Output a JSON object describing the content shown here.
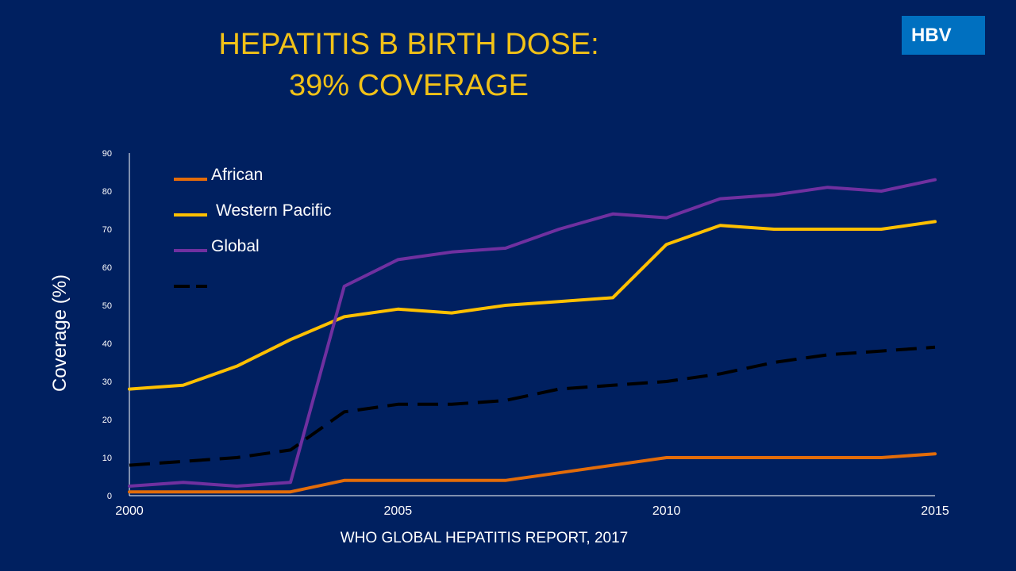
{
  "title_line1": "HEPATITIS B BIRTH DOSE:",
  "title_line2": "39% COVERAGE",
  "badge": "HBV",
  "source": "WHO GLOBAL  HEPATITIS  REPORT, 2017",
  "chart_data": {
    "type": "line",
    "ylabel": "Coverage (%)",
    "xlabel": "",
    "xlim": [
      2000,
      2015
    ],
    "ylim": [
      0,
      90
    ],
    "x_ticks": [
      2000,
      2005,
      2010,
      2015
    ],
    "y_ticks": [
      0,
      10,
      20,
      30,
      40,
      50,
      60,
      70,
      80,
      90
    ],
    "legend_position": "top-left",
    "grid": false,
    "x": [
      2000,
      2001,
      2002,
      2003,
      2004,
      2005,
      2006,
      2007,
      2008,
      2009,
      2010,
      2011,
      2012,
      2013,
      2014,
      2015
    ],
    "series": [
      {
        "name": "African",
        "color": "#E36C09",
        "dash": "solid",
        "values": [
          1,
          1,
          1,
          1,
          4,
          4,
          4,
          4,
          6,
          8,
          10,
          10,
          10,
          10,
          10,
          11
        ]
      },
      {
        "name": "Western Pacific",
        "color": "#FFC000",
        "dash": "solid",
        "values": [
          28,
          29,
          34,
          41,
          47,
          49,
          48,
          50,
          51,
          52,
          66,
          71,
          70,
          70,
          70,
          72
        ]
      },
      {
        "name": "Global",
        "color": "#7030A0",
        "dash": "solid",
        "values": [
          2.5,
          3.5,
          2.5,
          3.5,
          55,
          62,
          64,
          65,
          70,
          74,
          73,
          78,
          79,
          81,
          80,
          83
        ]
      },
      {
        "name": "",
        "color": "#000000",
        "dash": "dashed",
        "values": [
          8,
          9,
          10,
          12,
          22,
          24,
          24,
          25,
          28,
          29,
          30,
          32,
          35,
          37,
          38,
          39
        ]
      }
    ]
  }
}
